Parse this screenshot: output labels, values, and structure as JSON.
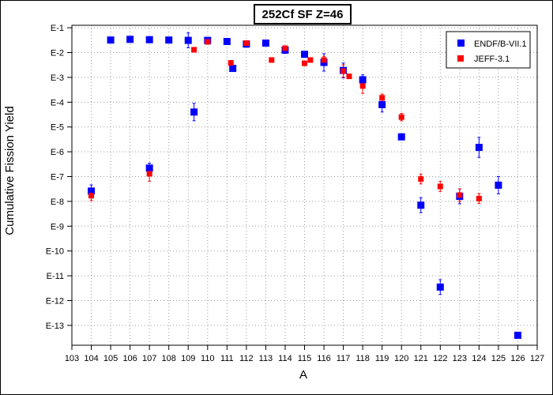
{
  "chart_data": {
    "type": "scatter",
    "title": "252Cf SF Z=46",
    "xlabel": "A",
    "ylabel": "Cumulative Fission Yield",
    "xlim": [
      103,
      127
    ],
    "ylim_exponent": [
      -13.8,
      -0.9
    ],
    "y_scale": "log",
    "x_ticks": [
      103,
      104,
      105,
      106,
      107,
      108,
      109,
      110,
      111,
      112,
      113,
      114,
      115,
      116,
      117,
      118,
      119,
      120,
      121,
      122,
      123,
      124,
      125,
      126,
      127
    ],
    "y_ticks": [
      "E-1",
      "E-2",
      "E-3",
      "E-4",
      "E-5",
      "E-6",
      "E-7",
      "E-8",
      "E-9",
      "E-10",
      "E-11",
      "E-12",
      "E-13"
    ],
    "grid": true,
    "legend_position": "top-right",
    "series": [
      {
        "name": "ENDF/B-VII.1",
        "color": "#0000ff",
        "marker": "square",
        "points": [
          {
            "x": 104,
            "y": "2.6e-8",
            "err": 0.25
          },
          {
            "x": 105,
            "y": "0.032",
            "err": 0.0
          },
          {
            "x": 106,
            "y": "0.034",
            "err": 0.0
          },
          {
            "x": 107,
            "y": "0.033",
            "err": 0.0
          },
          {
            "x": 107,
            "y": "2.2e-7",
            "err": 0.2
          },
          {
            "x": 108,
            "y": "0.032",
            "err": 0.0
          },
          {
            "x": 109,
            "y": "0.031",
            "err": 0.3
          },
          {
            "x": 109.3,
            "y": "4.0e-5",
            "err": 0.35
          },
          {
            "x": 110,
            "y": "0.031",
            "err": 0.0
          },
          {
            "x": 111,
            "y": "0.028",
            "err": 0.0
          },
          {
            "x": 111.3,
            "y": "0.0023",
            "err": 0.0
          },
          {
            "x": 112,
            "y": "0.022",
            "err": 0.0
          },
          {
            "x": 113,
            "y": "0.024",
            "err": 0.0
          },
          {
            "x": 114,
            "y": "0.0125",
            "err": 0.12
          },
          {
            "x": 115,
            "y": "0.0085",
            "err": 0.0
          },
          {
            "x": 116,
            "y": "0.0040",
            "err": 0.35
          },
          {
            "x": 117,
            "y": "0.0019",
            "err": 0.3
          },
          {
            "x": 118,
            "y": "8.0e-4",
            "err": 0.2
          },
          {
            "x": 119,
            "y": "8.0e-5",
            "err": 0.3
          },
          {
            "x": 120,
            "y": "4.0e-6",
            "err": 0.0
          },
          {
            "x": 121,
            "y": "7.0e-9",
            "err": 0.3
          },
          {
            "x": 122,
            "y": "3.5e-12",
            "err": 0.3
          },
          {
            "x": 123,
            "y": "1.6e-8",
            "err": 0.3
          },
          {
            "x": 124,
            "y": "1.5e-6",
            "err": 0.4
          },
          {
            "x": 125,
            "y": "4.5e-8",
            "err": 0.35
          },
          {
            "x": 126,
            "y": "4.0e-14",
            "err": 0.0
          }
        ]
      },
      {
        "name": "JEFF-3.1",
        "color": "#ff0000",
        "marker": "square",
        "points": [
          {
            "x": 104,
            "y": "1.7e-8",
            "err": 0.2
          },
          {
            "x": 107,
            "y": "1.3e-7",
            "err": 0.3
          },
          {
            "x": 109.3,
            "y": "0.013",
            "err": 0.0
          },
          {
            "x": 110,
            "y": "0.027",
            "err": 0.0
          },
          {
            "x": 111.2,
            "y": "0.0038",
            "err": 0.1
          },
          {
            "x": 112,
            "y": "0.024",
            "err": 0.0
          },
          {
            "x": 113.3,
            "y": "0.0050",
            "err": 0.0
          },
          {
            "x": 114,
            "y": "0.015",
            "err": 0.0
          },
          {
            "x": 115,
            "y": "0.0037",
            "err": 0.0
          },
          {
            "x": 115.3,
            "y": "0.0050",
            "err": 0.0
          },
          {
            "x": 116,
            "y": "0.0050",
            "err": 0.15
          },
          {
            "x": 117,
            "y": "0.0018",
            "err": 0.25
          },
          {
            "x": 117.3,
            "y": "0.0011",
            "err": 0.0
          },
          {
            "x": 118,
            "y": "4.5e-4",
            "err": 0.3
          },
          {
            "x": 119,
            "y": "1.5e-4",
            "err": 0.15
          },
          {
            "x": 120,
            "y": "2.5e-5",
            "err": 0.15
          },
          {
            "x": 121,
            "y": "8.0e-8",
            "err": 0.2
          },
          {
            "x": 122,
            "y": "4.0e-8",
            "err": 0.2
          },
          {
            "x": 123,
            "y": "1.8e-8",
            "err": 0.25
          },
          {
            "x": 124,
            "y": "1.3e-8",
            "err": 0.2
          }
        ]
      }
    ]
  }
}
